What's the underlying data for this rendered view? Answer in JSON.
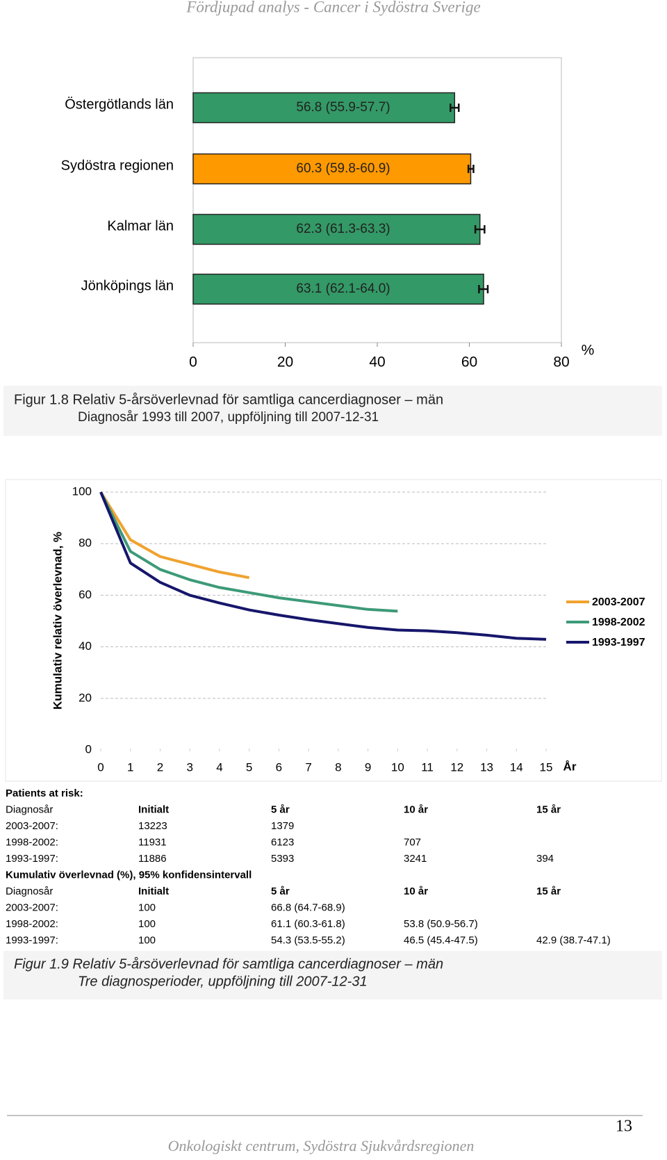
{
  "header": {
    "title": "Fördjupad analys - Cancer i Sydöstra Sverige"
  },
  "chart_data": [
    {
      "type": "bar",
      "orientation": "horizontal",
      "categories": [
        "Östergötlands län",
        "Sydöstra regionen",
        "Kalmar län",
        "Jönköpings län"
      ],
      "values": [
        56.8,
        60.3,
        62.3,
        63.1
      ],
      "value_labels": [
        "56.8 (55.9-57.7)",
        "60.3 (59.8-60.9)",
        "62.3 (61.3-63.3)",
        "63.1 (62.1-64.0)"
      ],
      "ci_low": [
        55.9,
        59.8,
        61.3,
        62.1
      ],
      "ci_high": [
        57.7,
        60.9,
        63.3,
        64.0
      ],
      "colors": [
        "#339966",
        "#ff9900",
        "#339966",
        "#339966"
      ],
      "xlim": [
        0,
        80
      ],
      "xticks": [
        0,
        20,
        40,
        60,
        80
      ],
      "x_label": "%",
      "grid": false
    },
    {
      "type": "line",
      "x": [
        0,
        1,
        2,
        3,
        4,
        5,
        6,
        7,
        8,
        9,
        10,
        11,
        12,
        13,
        14,
        15
      ],
      "series": [
        {
          "name": "2003-2007",
          "color": "#f0a22e",
          "values": [
            100,
            81.5,
            75,
            72,
            69,
            66.8,
            null,
            null,
            null,
            null,
            null,
            null,
            null,
            null,
            null,
            null
          ]
        },
        {
          "name": "1998-2002",
          "color": "#3d9a78",
          "values": [
            100,
            77,
            70,
            66,
            63,
            61,
            59,
            57.5,
            56,
            54.5,
            53.8,
            null,
            null,
            null,
            null,
            null
          ]
        },
        {
          "name": "1993-1997",
          "color": "#16166b",
          "values": [
            100,
            72.5,
            65,
            60,
            57,
            54.3,
            52.3,
            50.5,
            49,
            47.5,
            46.5,
            46.2,
            45.5,
            44.5,
            43.3,
            42.9
          ]
        }
      ],
      "xlim": [
        0,
        15
      ],
      "xticks": [
        0,
        1,
        2,
        3,
        4,
        5,
        6,
        7,
        8,
        9,
        10,
        11,
        12,
        13,
        14,
        15
      ],
      "ylim": [
        0,
        100
      ],
      "yticks": [
        0,
        20,
        40,
        60,
        80,
        100
      ],
      "x_label": "År",
      "y_label": "Kumulativ relativ överlevnad, %",
      "grid": true,
      "legend": "right"
    }
  ],
  "captions": [
    [
      "Figur 1.8 Relativ 5-årsöverlevnad för samtliga cancerdiagnoser – män",
      "Diagnosår 1993 till 2007, uppföljning till 2007-12-31"
    ],
    [
      "Figur 1.9 Relativ 5-årsöverlevnad för samtliga cancerdiagnoser – män",
      "Tre diagnosperioder, uppföljning till 2007-12-31"
    ]
  ],
  "tables": [
    {
      "title": "Patients at risk:",
      "header": [
        "Diagnosår",
        "Initialt",
        "5 år",
        "10 år",
        "15 år"
      ],
      "rows": [
        [
          "2003-2007:",
          "13223",
          "1379"
        ],
        [
          "1998-2002:",
          "11931",
          "6123",
          "707"
        ],
        [
          "1993-1997:",
          "11886",
          "5393",
          "3241",
          "394"
        ]
      ]
    },
    {
      "title": "Kumulativ överlevnad (%), 95% konfidensintervall",
      "header": [
        "Diagnosår",
        "Initialt",
        "5 år",
        "10 år",
        "15 år"
      ],
      "rows": [
        [
          "2003-2007:",
          "100",
          "66.8 (64.7-68.9)"
        ],
        [
          "1998-2002:",
          "100",
          "61.1 (60.3-61.8)",
          "53.8 (50.9-56.7)"
        ],
        [
          "1993-1997:",
          "100",
          "54.3 (53.5-55.2)",
          "46.5 (45.4-47.5)",
          "42.9 (38.7-47.1)"
        ]
      ]
    }
  ],
  "footer": {
    "page": "13",
    "text": "Onkologiskt centrum, Sydöstra Sjukvårdsregionen"
  }
}
